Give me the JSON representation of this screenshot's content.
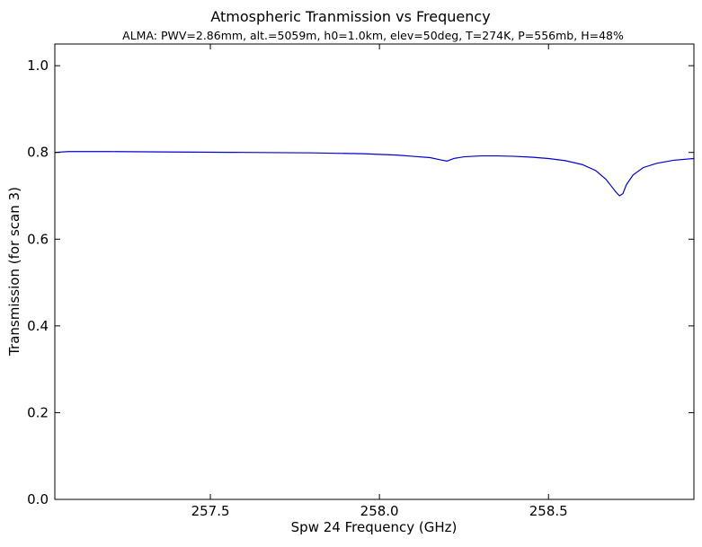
{
  "chart_data": {
    "type": "line",
    "title": "Atmospheric Tranmission vs Frequency",
    "subtitle": "ALMA: PWV=2.86mm, alt.=5059m, h0=1.0km, elev=50deg, T=274K, P=556mb, H=48%",
    "xlabel": "Spw 24 Frequency (GHz)",
    "ylabel": "Transmission (for scan 3)",
    "xlim": [
      257.04,
      258.93
    ],
    "ylim": [
      0.0,
      1.05
    ],
    "grid": false,
    "xticks": [
      {
        "value": 257.5,
        "label": "257.5"
      },
      {
        "value": 258.0,
        "label": "258.0"
      },
      {
        "value": 258.5,
        "label": "258.5"
      }
    ],
    "yticks": [
      {
        "value": 0.0,
        "label": "0.0"
      },
      {
        "value": 0.2,
        "label": "0.2"
      },
      {
        "value": 0.4,
        "label": "0.4"
      },
      {
        "value": 0.6,
        "label": "0.6"
      },
      {
        "value": 0.8,
        "label": "0.8"
      },
      {
        "value": 1.0,
        "label": "1.0"
      }
    ],
    "series": [
      {
        "color": "#0000cc",
        "x": [
          257.04,
          257.08,
          257.2,
          257.4,
          257.6,
          257.8,
          257.95,
          258.05,
          258.1,
          258.15,
          258.18,
          258.2,
          258.22,
          258.25,
          258.3,
          258.35,
          258.4,
          258.45,
          258.5,
          258.55,
          258.6,
          258.64,
          258.67,
          258.69,
          258.7,
          258.71,
          258.72,
          258.73,
          258.75,
          258.78,
          258.82,
          258.87,
          258.93
        ],
        "y": [
          0.8,
          0.802,
          0.802,
          0.801,
          0.8,
          0.799,
          0.797,
          0.794,
          0.791,
          0.788,
          0.783,
          0.78,
          0.786,
          0.79,
          0.792,
          0.792,
          0.791,
          0.789,
          0.786,
          0.781,
          0.772,
          0.758,
          0.738,
          0.718,
          0.708,
          0.7,
          0.705,
          0.725,
          0.748,
          0.765,
          0.775,
          0.782,
          0.786
        ]
      }
    ]
  }
}
